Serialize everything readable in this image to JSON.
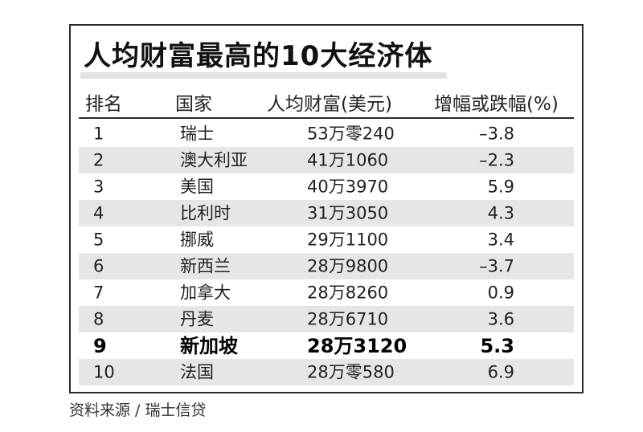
{
  "title": "人均财富最高的10大经济体",
  "headers": {
    "rank": "排名",
    "country": "国家",
    "wealth": "人均财富(美元)",
    "change": "增幅或跌幅(%)"
  },
  "rows": [
    {
      "rank": "1",
      "country": "瑞士",
      "wealth": "53万零240",
      "change": "–3.8"
    },
    {
      "rank": "2",
      "country": "澳大利亚",
      "wealth": "41万1060",
      "change": "–2.3"
    },
    {
      "rank": "3",
      "country": "美国",
      "wealth": "40万3970",
      "change": "5.9"
    },
    {
      "rank": "4",
      "country": "比利时",
      "wealth": "31万3050",
      "change": "4.3"
    },
    {
      "rank": "5",
      "country": "挪威",
      "wealth": "29万1100",
      "change": "3.4"
    },
    {
      "rank": "6",
      "country": "新西兰",
      "wealth": "28万9800",
      "change": "–3.7"
    },
    {
      "rank": "7",
      "country": "加拿大",
      "wealth": "28万8260",
      "change": "0.9"
    },
    {
      "rank": "8",
      "country": "丹麦",
      "wealth": "28万6710",
      "change": "3.6"
    },
    {
      "rank": "9",
      "country": "新加坡",
      "wealth": "28万3120",
      "change": "5.3"
    },
    {
      "rank": "10",
      "country": "法国",
      "wealth": "28万零580",
      "change": "6.9"
    }
  ],
  "source": "资料来源 / 瑞士信贷"
}
